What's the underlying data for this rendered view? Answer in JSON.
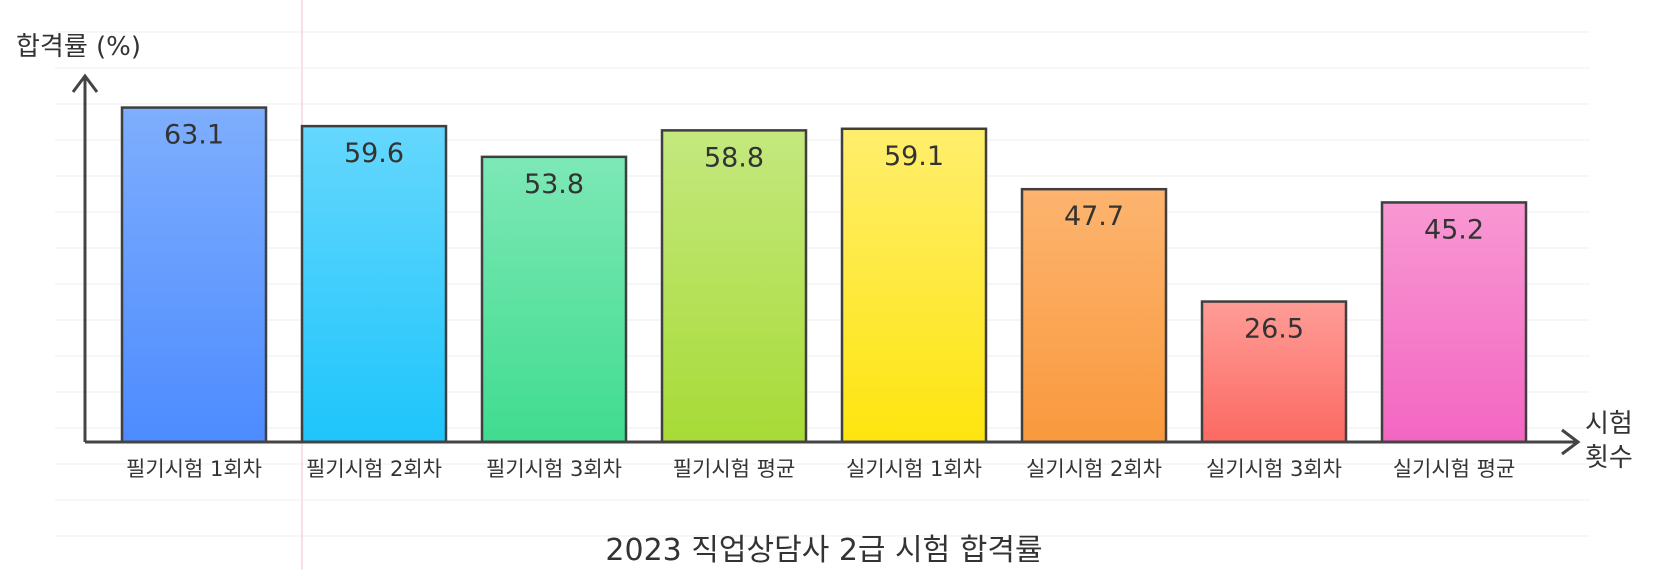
{
  "chart_data": {
    "type": "bar",
    "title": "2023 직업상담사 2급 시험 합격률",
    "ylabel": "합격률 (%)",
    "xlabel": [
      "시험",
      "횟수"
    ],
    "categories": [
      "필기시험 1회차",
      "필기시험 2회차",
      "필기시험 3회차",
      "필기시험 평균",
      "실기시험 1회차",
      "실기시험 2회차",
      "실기시험 3회차",
      "실기시험 평균"
    ],
    "values": [
      63.1,
      59.6,
      53.8,
      58.8,
      59.1,
      47.7,
      26.5,
      45.2
    ],
    "value_labels": [
      "63.1",
      "59.6",
      "53.8",
      "58.8",
      "59.1",
      "47.7",
      "26.5",
      "45.2"
    ],
    "ylim": [
      0,
      70
    ],
    "grid": true,
    "colors": [
      [
        "#7EAEFD",
        "#4D8BFF"
      ],
      [
        "#65D7FD",
        "#1EC5FB"
      ],
      [
        "#7DE8B6",
        "#40DC8F"
      ],
      [
        "#C4E87F",
        "#A7DB36"
      ],
      [
        "#FFEE6D",
        "#FEE50F"
      ],
      [
        "#FDB46F",
        "#F9993D"
      ],
      [
        "#FE9C96",
        "#FC6A63"
      ],
      [
        "#F898D2",
        "#F366C2"
      ]
    ]
  }
}
